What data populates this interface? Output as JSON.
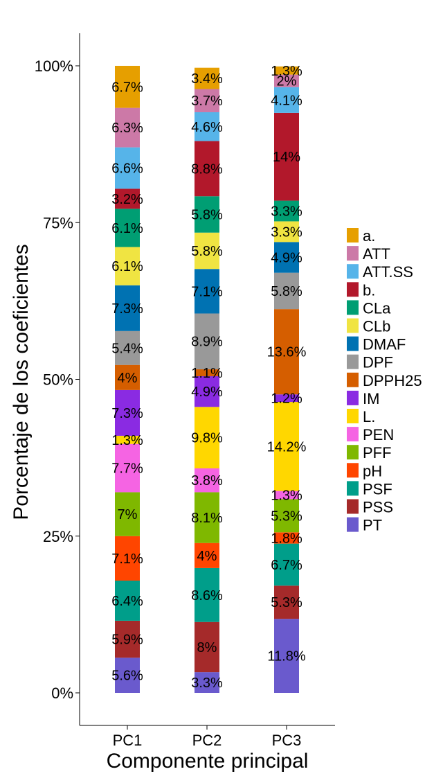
{
  "chart_data": {
    "type": "bar",
    "stacked": true,
    "percent": true,
    "xlabel": "Componente principal",
    "ylabel": "Porcentaje de los coeficientes",
    "ylim": [
      0,
      100
    ],
    "ytick_values": [
      0,
      25,
      50,
      75,
      100
    ],
    "ytick_labels": [
      "0%",
      "25%",
      "50%",
      "75%",
      "100%"
    ],
    "categories": [
      "PC1",
      "PC2",
      "PC3"
    ],
    "legend_position": "right",
    "series": [
      {
        "name": "a.",
        "color": "#E69F00",
        "values": [
          6.7,
          3.4,
          1.3
        ],
        "labels": [
          "6.7%",
          "3.4%",
          "1.3%"
        ]
      },
      {
        "name": "ATT",
        "color": "#CC79A7",
        "values": [
          6.3,
          3.7,
          2.0
        ],
        "labels": [
          "6.3%",
          "3.7%",
          "2%"
        ]
      },
      {
        "name": "ATT.SS",
        "color": "#56B4E9",
        "values": [
          6.6,
          4.6,
          4.1
        ],
        "labels": [
          "6.6%",
          "4.6%",
          "4.1%"
        ]
      },
      {
        "name": "b.",
        "color": "#B2182B",
        "values": [
          3.2,
          8.8,
          14.0
        ],
        "labels": [
          "3.2%",
          "8.8%",
          "14%"
        ]
      },
      {
        "name": "CLa",
        "color": "#009E73",
        "values": [
          6.1,
          5.8,
          3.3
        ],
        "labels": [
          "6.1%",
          "5.8%",
          "3.3%"
        ]
      },
      {
        "name": "CLb",
        "color": "#F0E442",
        "values": [
          6.1,
          5.8,
          3.3
        ],
        "labels": [
          "6.1%",
          "5.8%",
          "3.3%"
        ]
      },
      {
        "name": "DMAF",
        "color": "#0072B2",
        "values": [
          7.3,
          7.1,
          4.9
        ],
        "labels": [
          "7.3%",
          "7.1%",
          "4.9%"
        ]
      },
      {
        "name": "DPF",
        "color": "#999999",
        "values": [
          5.4,
          8.9,
          5.8
        ],
        "labels": [
          "5.4%",
          "8.9%",
          "5.8%"
        ]
      },
      {
        "name": "DPPH25",
        "color": "#D55E00",
        "values": [
          4.0,
          1.1,
          13.6
        ],
        "labels": [
          "4%",
          "1.1%",
          "13.6%"
        ]
      },
      {
        "name": "IM",
        "color": "#8A2BE2",
        "values": [
          7.3,
          4.9,
          1.2
        ],
        "labels": [
          "7.3%",
          "4.9%",
          "1.2%"
        ]
      },
      {
        "name": "L.",
        "color": "#FFD700",
        "values": [
          1.3,
          9.8,
          14.2
        ],
        "labels": [
          "1.3%",
          "9.8%",
          "14.2%"
        ]
      },
      {
        "name": "PEN",
        "color": "#F564E3",
        "values": [
          7.7,
          3.8,
          1.3
        ],
        "labels": [
          "7.7%",
          "3.8%",
          "1.3%"
        ]
      },
      {
        "name": "PFF",
        "color": "#7FB800",
        "values": [
          7.0,
          8.1,
          5.3
        ],
        "labels": [
          "7%",
          "8.1%",
          "5.3%"
        ]
      },
      {
        "name": "pH",
        "color": "#FF4500",
        "values": [
          7.1,
          4.0,
          1.8
        ],
        "labels": [
          "7.1%",
          "4%",
          "1.8%"
        ]
      },
      {
        "name": "PSF",
        "color": "#009E8A",
        "values": [
          6.4,
          8.6,
          6.7
        ],
        "labels": [
          "6.4%",
          "8.6%",
          "6.7%"
        ]
      },
      {
        "name": "PSS",
        "color": "#A52A2A",
        "values": [
          5.9,
          8.0,
          5.3
        ],
        "labels": [
          "5.9%",
          "8%",
          "5.3%"
        ]
      },
      {
        "name": "PT",
        "color": "#6A5ACD",
        "values": [
          5.6,
          3.3,
          11.8
        ],
        "labels": [
          "5.6%",
          "3.3%",
          "11.8%"
        ]
      }
    ]
  }
}
